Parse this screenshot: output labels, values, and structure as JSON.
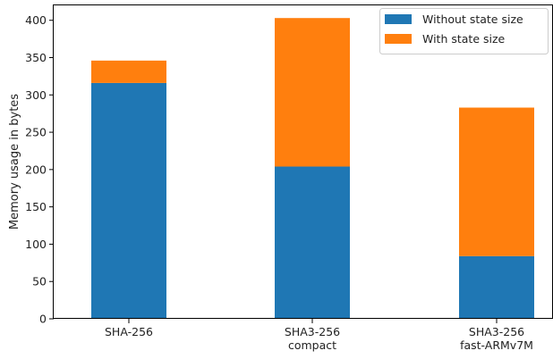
{
  "chart_data": {
    "type": "bar",
    "stacked": true,
    "categories": [
      [
        "SHA-256"
      ],
      [
        "SHA3-256",
        "compact"
      ],
      [
        "SHA3-256",
        "fast-ARMv7M"
      ]
    ],
    "series": [
      {
        "name": "Without state size",
        "values": [
          316,
          204,
          84
        ],
        "color": "#1f77b4"
      },
      {
        "name": "With state size",
        "values": [
          30,
          199,
          199
        ],
        "color": "#ff7f0e"
      }
    ],
    "title": "",
    "xlabel": "",
    "ylabel": "Memory usage in bytes",
    "ylim": [
      0,
      420
    ],
    "yticks": [
      0,
      50,
      100,
      150,
      200,
      250,
      300,
      350,
      400
    ],
    "grid": false,
    "legend": "top-right"
  }
}
